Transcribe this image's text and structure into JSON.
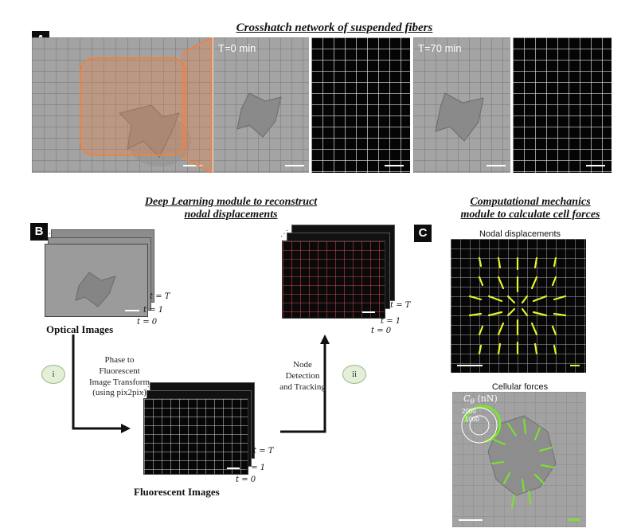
{
  "panel_a": {
    "label": "A",
    "title": "Crosshatch network of suspended fibers",
    "time_label_1": "T=0 min",
    "time_label_2": "T=70 min"
  },
  "panel_b": {
    "label": "B",
    "title_line1": "Deep Learning module to reconstruct",
    "title_line2": "nodal displacements",
    "optical_caption": "Optical  Images",
    "fluorescent_caption": "Fluorescent Images",
    "step_i_badge": "i",
    "step_i_text_1": "Phase to",
    "step_i_text_2": "Fluorescent",
    "step_i_text_3": "Image Transform",
    "step_i_text_4": "(using pix2pix)",
    "step_ii_badge": "ii",
    "step_ii_text_1": "Node",
    "step_ii_text_2": "Detection",
    "step_ii_text_3": "and Tracking",
    "time_T": "t = T",
    "time_1": "t = 1",
    "time_0": "t = 0"
  },
  "panel_c": {
    "label": "C",
    "title_line1": "Computational mechanics",
    "title_line2": "module to calculate cell forces",
    "nodal_title": "Nodal displacements",
    "forces_title": "Cellular forces",
    "legend_label": "C",
    "legend_subscript": "θ",
    "legend_unit": "(nN)",
    "legend_tick_1": "2000",
    "legend_tick_2": "1000"
  },
  "colors": {
    "highlight_orange": "#e8834a",
    "displacement_yellow": "#e9f52a",
    "force_green": "#7ae62a",
    "grid_red": "#d0454a"
  }
}
